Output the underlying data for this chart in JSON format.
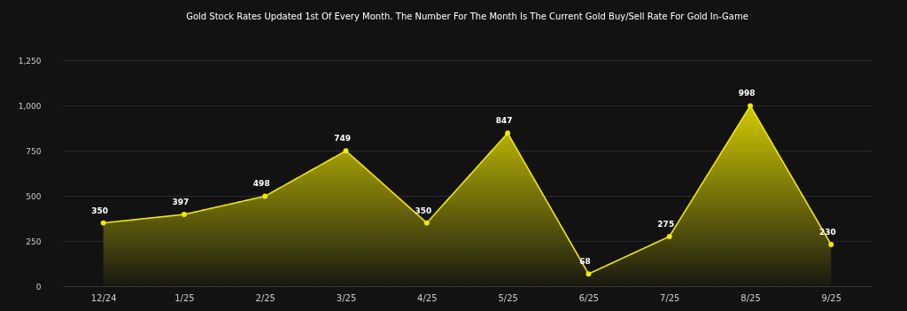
{
  "chart_data": {
    "type": "area",
    "subtitle": "Gold Stock Rates Updated 1st Of Every Month. The Number For The Month Is The Current Gold Buy/Sell Rate For Gold In-Game",
    "categories": [
      "12/24",
      "1/25",
      "2/25",
      "3/25",
      "4/25",
      "5/25",
      "6/25",
      "7/25",
      "8/25",
      "9/25"
    ],
    "values": [
      350,
      397,
      498,
      749,
      350,
      847,
      68,
      275,
      998,
      230
    ],
    "color": "#f2ea00",
    "ylim": [
      0,
      1250
    ],
    "yticks": [
      0,
      250,
      500,
      750,
      {
        "value": 1000,
        "label": "1,000"
      },
      {
        "value": 1250,
        "label": "1,250"
      }
    ],
    "grid": "y",
    "marker": "circle",
    "line_style": "solid",
    "data_labels": true
  }
}
